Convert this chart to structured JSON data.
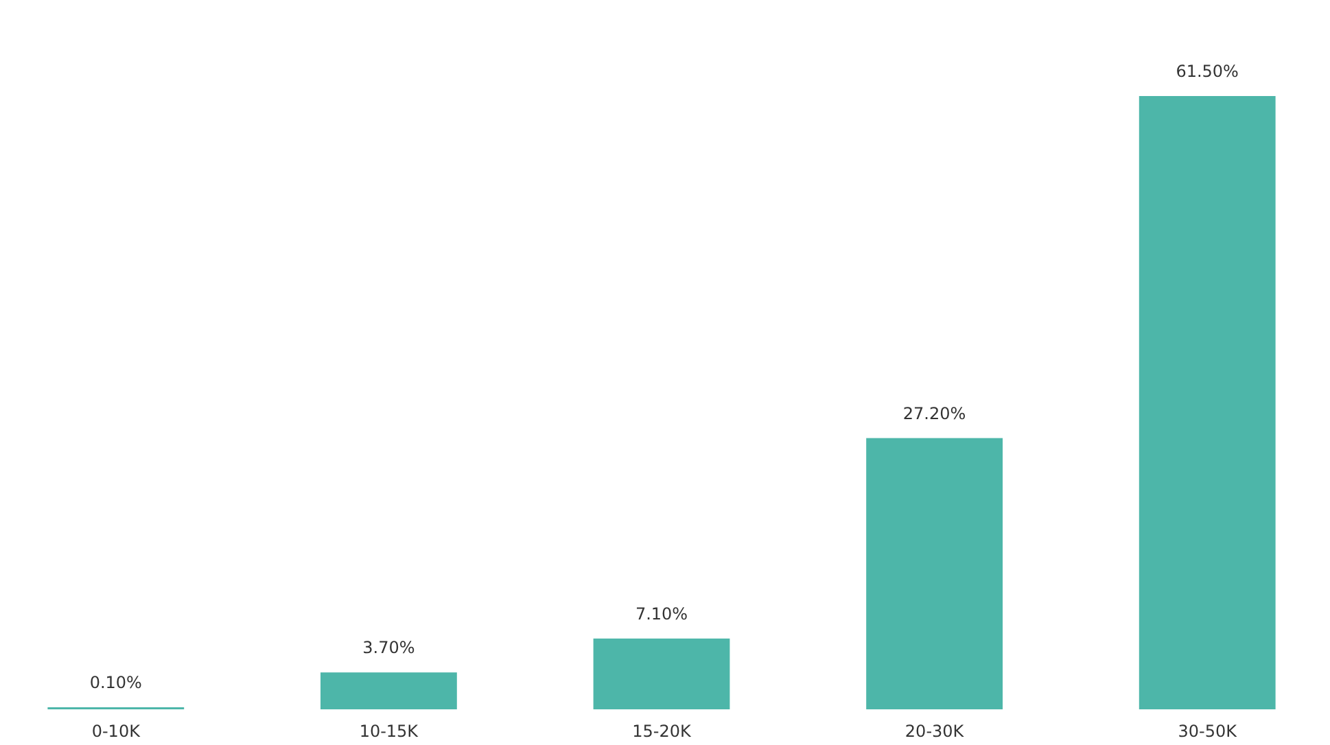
{
  "chart_data": {
    "type": "bar",
    "categories": [
      "0-10K",
      "10-15K",
      "15-20K",
      "20-30K",
      "30-50K"
    ],
    "values": [
      0.1,
      3.7,
      7.1,
      27.2,
      61.5
    ],
    "value_labels": [
      "0.10%",
      "3.70%",
      "7.10%",
      "27.20%",
      "61.50%"
    ],
    "color": "#4db6a9"
  }
}
